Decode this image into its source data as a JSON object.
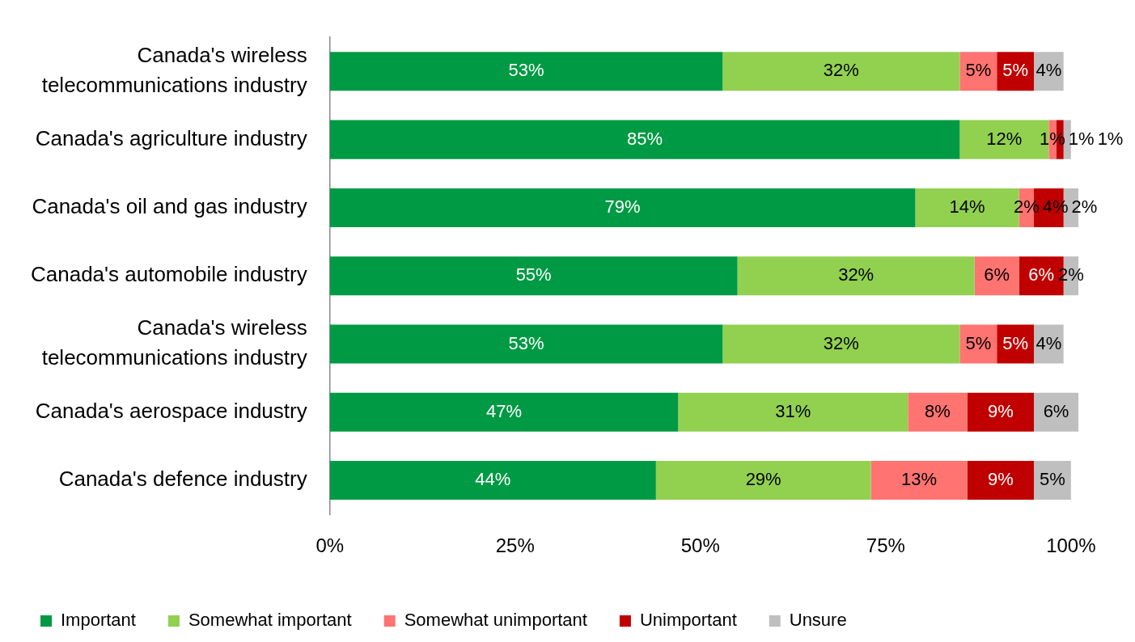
{
  "chart_data": {
    "type": "bar",
    "orientation": "horizontal",
    "stacked": true,
    "legend": "bottom",
    "grid": false,
    "categories": [
      "Canada's wireless telecommunications industry",
      "Canada's agriculture industry",
      "Canada's oil and gas industry",
      "Canada's automobile industry",
      "Canada's wireless telecommunications industry",
      "Canada's aerospace industry",
      "Canada's defence industry"
    ],
    "xlim": [
      0,
      101
    ],
    "xticks": [
      {
        "value": 0,
        "label": "0%"
      },
      {
        "value": 25,
        "label": "25%"
      },
      {
        "value": 50,
        "label": "50%"
      },
      {
        "value": 75,
        "label": "75%"
      },
      {
        "value": 100,
        "label": "100%"
      }
    ],
    "series": [
      {
        "name": "Important",
        "color": "#009a44",
        "values": [
          53,
          85,
          79,
          55,
          53,
          47,
          44
        ],
        "value_labels": [
          "53%",
          "85%",
          "79%",
          "55%",
          "53%",
          "47%",
          "44%"
        ]
      },
      {
        "name": "Somewhat important",
        "color": "#92d050",
        "values": [
          32,
          12,
          14,
          32,
          32,
          31,
          29
        ],
        "value_labels": [
          "32%",
          "12%",
          "14%",
          "32%",
          "32%",
          "31%",
          "29%"
        ]
      },
      {
        "name": "Somewhat unimportant",
        "color": "#ff7370",
        "values": [
          5,
          1,
          2,
          6,
          5,
          8,
          13
        ],
        "value_labels": [
          "5%",
          "1%",
          "2%",
          "6%",
          "5%",
          "8%",
          "13%"
        ]
      },
      {
        "name": "Unimportant",
        "color": "#c00000",
        "values": [
          5,
          1,
          4,
          6,
          5,
          9,
          9
        ],
        "value_labels": [
          "5%",
          "1%",
          "4%",
          "6%",
          "5%",
          "9%",
          "9%"
        ]
      },
      {
        "name": "Unsure",
        "color": "#bfbfbf",
        "values": [
          4,
          1,
          2,
          2,
          4,
          6,
          5
        ],
        "value_labels": [
          "4%",
          "1%",
          "2%",
          "2%",
          "4%",
          "6%",
          "5%"
        ]
      }
    ]
  }
}
